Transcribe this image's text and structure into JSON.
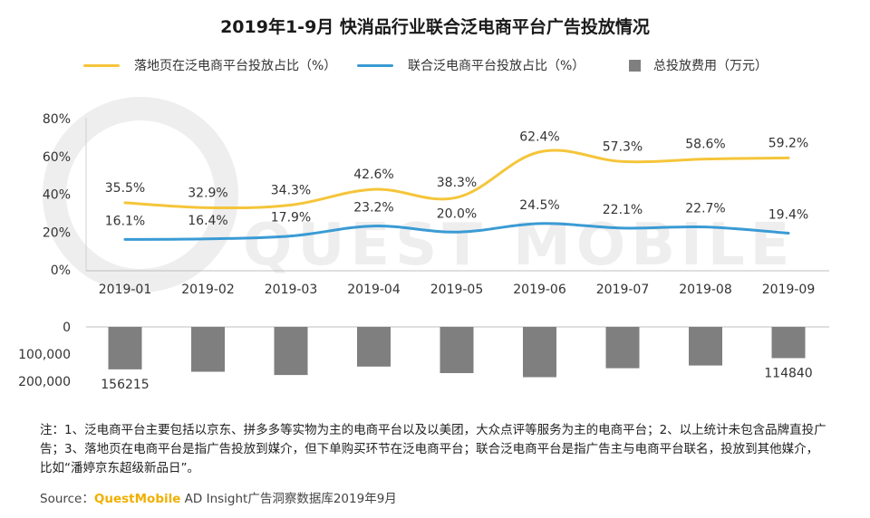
{
  "title": "2019年1-9月 快消品行业联合泛电商平台广告投放情况",
  "colors": {
    "landing_line": "#F5C53A",
    "joint_line": "#3A9BD4",
    "bar": "#7F7F7F",
    "watermark": "#eeeeee"
  },
  "legend": {
    "landing": "落地页在泛电商平台投放占比（%）",
    "joint": "联合泛电商平台投放占比（%）",
    "total": "总投放费用（万元）"
  },
  "watermark": "QUEST MOBILE",
  "chart_data": {
    "type": "line+bar",
    "categories": [
      "2019-01",
      "2019-02",
      "2019-03",
      "2019-04",
      "2019-05",
      "2019-06",
      "2019-07",
      "2019-08",
      "2019-09"
    ],
    "line_axis": {
      "ticks": [
        "80%",
        "60%",
        "40%",
        "20%",
        "0%"
      ],
      "ylim": [
        0,
        80
      ]
    },
    "series": [
      {
        "name": "落地页在泛电商平台投放占比（%）",
        "type": "line",
        "values": [
          35.5,
          32.9,
          34.3,
          42.6,
          38.3,
          62.4,
          57.3,
          58.6,
          59.2
        ],
        "labels": [
          "35.5%",
          "32.9%",
          "34.3%",
          "42.6%",
          "38.3%",
          "62.4%",
          "57.3%",
          "58.6%",
          "59.2%"
        ]
      },
      {
        "name": "联合泛电商平台投放占比（%）",
        "type": "line",
        "values": [
          16.1,
          16.4,
          17.9,
          23.2,
          20.0,
          24.5,
          22.1,
          22.7,
          19.4
        ],
        "labels": [
          "16.1%",
          "16.4%",
          "17.9%",
          "23.2%",
          "20.0%",
          "24.5%",
          "22.1%",
          "22.7%",
          "19.4%"
        ]
      },
      {
        "name": "总投放费用（万元）",
        "type": "bar",
        "values": [
          156215,
          165000,
          177000,
          146000,
          170000,
          185000,
          152000,
          142000,
          114840
        ]
      }
    ],
    "bar_axis": {
      "ticks": [
        "0",
        "100,000",
        "200,000"
      ],
      "ylim": [
        0,
        200000
      ],
      "direction": "downward"
    },
    "bar_labels": [
      {
        "index": 0,
        "text": "156215"
      },
      {
        "index": 8,
        "text": "114840"
      }
    ]
  },
  "note": "注：1、泛电商平台主要包括以京东、拼多多等实物为主的电商平台以及以美团，大众点评等服务为主的电商平台；2、以上统计未包含品牌直投广告；3、落地页在电商平台是指广告投放到媒介，但下单购买环节在泛电商平台；联合泛电商平台是指广告主与电商平台联名，投放到其他媒介，比如“潘婷京东超级新品日”。",
  "source": {
    "prefix": "Source：",
    "brand": "QuestMobile",
    "suffix": " AD Insight广告洞察数据库2019年9月"
  }
}
